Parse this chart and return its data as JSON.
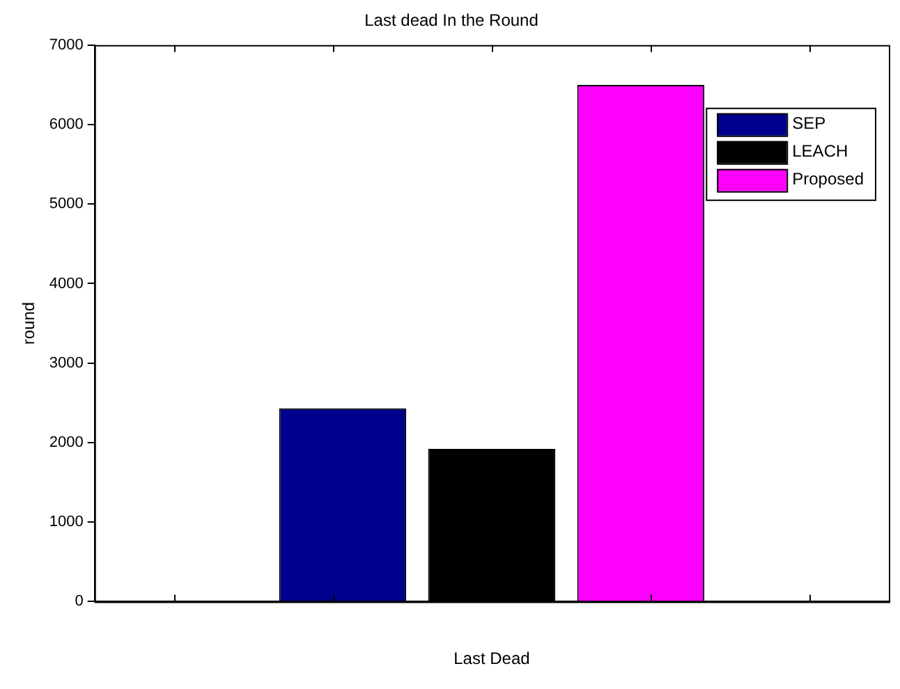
{
  "chart_data": {
    "type": "bar",
    "title": "Last dead In the Round",
    "xlabel": "Last Dead",
    "ylabel": "round",
    "categories": [
      null
    ],
    "ylim": [
      0,
      7000
    ],
    "yticks": [
      0,
      1000,
      2000,
      3000,
      4000,
      5000,
      6000,
      7000
    ],
    "series": [
      {
        "name": "SEP",
        "color": "#00008f",
        "values": [
          2430
        ]
      },
      {
        "name": "LEACH",
        "color": "#000000",
        "values": [
          1920
        ]
      },
      {
        "name": "Proposed",
        "color": "#ff00ff",
        "values": [
          6500
        ]
      }
    ],
    "grid": false,
    "legend": "top right"
  }
}
